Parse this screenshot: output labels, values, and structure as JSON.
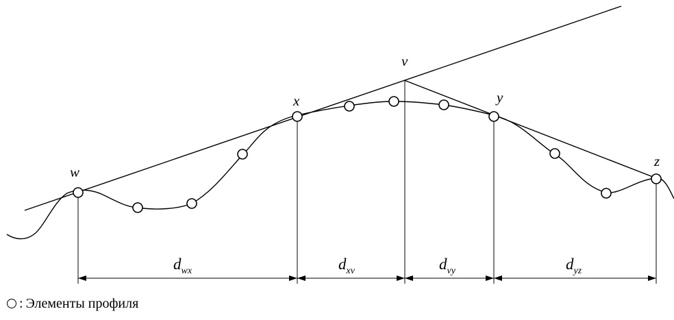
{
  "points": {
    "w": "w",
    "x": "x",
    "v": "v",
    "y": "y",
    "z": "z"
  },
  "distances": [
    {
      "main": "d",
      "sub": "wx"
    },
    {
      "main": "d",
      "sub": "xv"
    },
    {
      "main": "d",
      "sub": "vy"
    },
    {
      "main": "d",
      "sub": "yz"
    }
  ],
  "legend": {
    "separator": ":",
    "text": "Элементы профиля"
  }
}
